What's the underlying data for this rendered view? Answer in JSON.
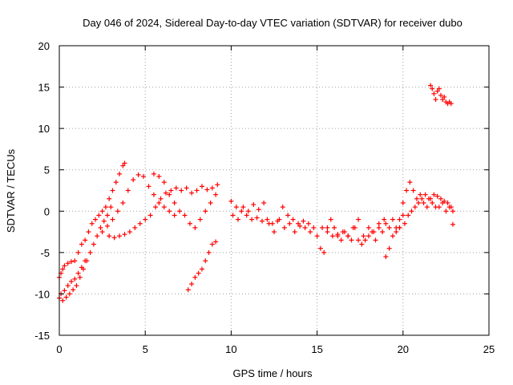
{
  "chart_data": {
    "type": "scatter",
    "title": "Day 046 of 2024, Sidereal Day-to-day VTEC variation (SDTVAR) for receiver dubo",
    "xlabel": "GPS time / hours",
    "ylabel": "SDTVAR / TECUs",
    "xlim": [
      0,
      25
    ],
    "ylim": [
      -15,
      20
    ],
    "xticks": [
      0,
      5,
      10,
      15,
      20,
      25
    ],
    "yticks": [
      -15,
      -10,
      -5,
      0,
      5,
      10,
      15,
      20
    ],
    "grid": true,
    "marker": "+",
    "color": "#ff0000",
    "series": [
      {
        "name": "SDTVAR",
        "x": [
          0.0,
          0.1,
          0.2,
          0.3,
          0.5,
          0.7,
          0.9,
          1.1,
          1.3,
          1.5,
          1.7,
          1.9,
          2.1,
          2.3,
          2.5,
          2.7,
          2.9,
          3.1,
          3.3,
          3.5,
          3.7,
          3.8,
          0.0,
          0.2,
          0.4,
          0.6,
          0.8,
          1.0,
          1.2,
          1.4,
          1.6,
          1.8,
          2.0,
          2.2,
          2.4,
          2.6,
          2.8,
          3.0,
          0.1,
          0.3,
          0.5,
          0.7,
          0.9,
          1.1,
          1.3,
          1.5,
          2.5,
          2.8,
          3.1,
          3.4,
          3.7,
          4.0,
          4.3,
          4.6,
          4.9,
          5.2,
          5.5,
          5.8,
          6.1,
          6.4,
          6.7,
          2.9,
          3.2,
          3.5,
          3.8,
          4.1,
          4.4,
          4.7,
          5.0,
          5.3,
          5.6,
          5.9,
          6.2,
          6.5,
          6.8,
          7.1,
          7.4,
          7.7,
          8.0,
          8.3,
          8.6,
          8.9,
          9.2,
          5.5,
          5.8,
          6.1,
          6.4,
          6.7,
          7.0,
          7.3,
          7.6,
          7.9,
          8.2,
          8.5,
          8.8,
          9.1,
          7.5,
          7.7,
          7.9,
          8.1,
          8.3,
          8.5,
          8.7,
          8.9,
          9.1,
          10.0,
          10.3,
          10.6,
          10.9,
          11.2,
          11.5,
          11.8,
          12.1,
          12.4,
          12.7,
          13.0,
          13.3,
          13.6,
          13.9,
          14.2,
          14.5,
          14.8,
          10.1,
          10.4,
          10.7,
          11.0,
          11.3,
          11.6,
          11.9,
          12.2,
          12.5,
          12.8,
          13.1,
          13.4,
          13.7,
          14.0,
          14.3,
          14.6,
          15.0,
          15.2,
          15.4,
          15.6,
          15.8,
          16.0,
          16.2,
          16.4,
          16.6,
          16.8,
          17.0,
          17.2,
          17.4,
          17.6,
          17.8,
          18.0,
          18.2,
          18.4,
          18.6,
          18.8,
          19.0,
          19.2,
          19.4,
          19.6,
          19.8,
          15.3,
          15.6,
          15.9,
          16.2,
          16.5,
          16.8,
          17.1,
          17.4,
          17.7,
          18.0,
          18.3,
          18.6,
          18.9,
          19.0,
          19.2,
          19.4,
          19.6,
          19.8,
          20.0,
          19.8,
          20.0,
          20.2,
          20.4,
          20.6,
          20.8,
          21.0,
          21.2,
          21.4,
          21.6,
          21.8,
          22.0,
          22.2,
          22.4,
          22.6,
          22.8,
          20.1,
          20.3,
          20.5,
          20.7,
          20.9,
          21.1,
          21.3,
          21.5,
          21.7,
          21.9,
          22.1,
          22.3,
          22.5,
          22.7,
          22.9,
          21.6,
          21.7,
          21.8,
          21.9,
          22.0,
          22.1,
          22.2,
          22.3,
          22.4,
          22.5,
          22.6,
          22.7,
          22.8,
          22.9
        ],
        "y": [
          -8.0,
          -7.5,
          -7.0,
          -6.6,
          -6.3,
          -6.1,
          -6.0,
          -5.0,
          -4.0,
          -3.5,
          -2.5,
          -1.5,
          -1.0,
          -0.5,
          0.0,
          0.5,
          1.5,
          2.5,
          3.5,
          4.5,
          5.5,
          5.8,
          -10.5,
          -10.8,
          -10.4,
          -10.0,
          -9.5,
          -9.0,
          -8.0,
          -7.0,
          -6.0,
          -5.0,
          -4.0,
          -3.0,
          -2.0,
          -1.2,
          -0.5,
          0.5,
          -10.0,
          -9.6,
          -9.0,
          -8.5,
          -8.2,
          -7.5,
          -6.8,
          -6.0,
          -2.5,
          -1.8,
          -1.0,
          0.0,
          1.0,
          2.5,
          3.8,
          4.4,
          4.2,
          3.0,
          2.0,
          1.0,
          0.5,
          0.0,
          -0.5,
          -3.0,
          -3.2,
          -3.0,
          -2.8,
          -2.5,
          -2.0,
          -1.5,
          -1.0,
          -0.5,
          0.5,
          1.5,
          2.2,
          2.5,
          2.8,
          2.5,
          2.8,
          2.2,
          2.5,
          3.0,
          2.6,
          2.8,
          3.2,
          4.5,
          4.2,
          3.5,
          2.0,
          1.0,
          0.0,
          -0.5,
          -1.5,
          -2.0,
          -1.0,
          0.0,
          1.0,
          2.0,
          -9.5,
          -8.8,
          -8.0,
          -7.5,
          -7.0,
          -6.0,
          -5.0,
          -4.0,
          -3.7,
          1.2,
          0.5,
          0.0,
          -0.5,
          -1.0,
          -0.8,
          -1.2,
          -1.0,
          -1.5,
          -1.2,
          0.5,
          -0.5,
          -1.0,
          -1.5,
          -1.2,
          -1.5,
          -2.0,
          -0.5,
          -1.0,
          0.5,
          0.0,
          0.8,
          0.2,
          1.0,
          -1.5,
          -2.5,
          -1.0,
          -2.0,
          -1.5,
          -2.5,
          -1.8,
          -2.0,
          -2.5,
          -3.0,
          -4.5,
          -5.0,
          -2.0,
          -1.0,
          -2.0,
          -3.0,
          -3.5,
          -2.5,
          -3.0,
          -3.5,
          -2.0,
          -1.0,
          -4.0,
          -3.5,
          -3.0,
          -2.5,
          -3.5,
          -2.0,
          -2.5,
          -1.5,
          -2.0,
          -1.0,
          -2.5,
          -2.0,
          -2.0,
          -2.5,
          -3.0,
          -2.8,
          -2.5,
          -3.0,
          -2.0,
          -3.5,
          -3.0,
          -2.0,
          -2.5,
          -1.5,
          -1.0,
          -5.5,
          -4.5,
          -3.0,
          -2.0,
          -1.0,
          -0.5,
          -2.0,
          1.0,
          2.5,
          3.5,
          2.5,
          1.5,
          2.0,
          1.0,
          0.5,
          1.5,
          2.0,
          1.8,
          1.5,
          1.2,
          1.0,
          0.5,
          -1.5,
          -0.5,
          0.0,
          0.5,
          1.0,
          1.5,
          2.0,
          1.5,
          1.0,
          0.5,
          0.5,
          1.0,
          0.0,
          0.5,
          0.0,
          15.2,
          14.8,
          14.2,
          13.5,
          14.5,
          14.8,
          14.0,
          13.5,
          13.8,
          13.2,
          13.0,
          13.2,
          13.0,
          -1.6
        ]
      }
    ]
  }
}
